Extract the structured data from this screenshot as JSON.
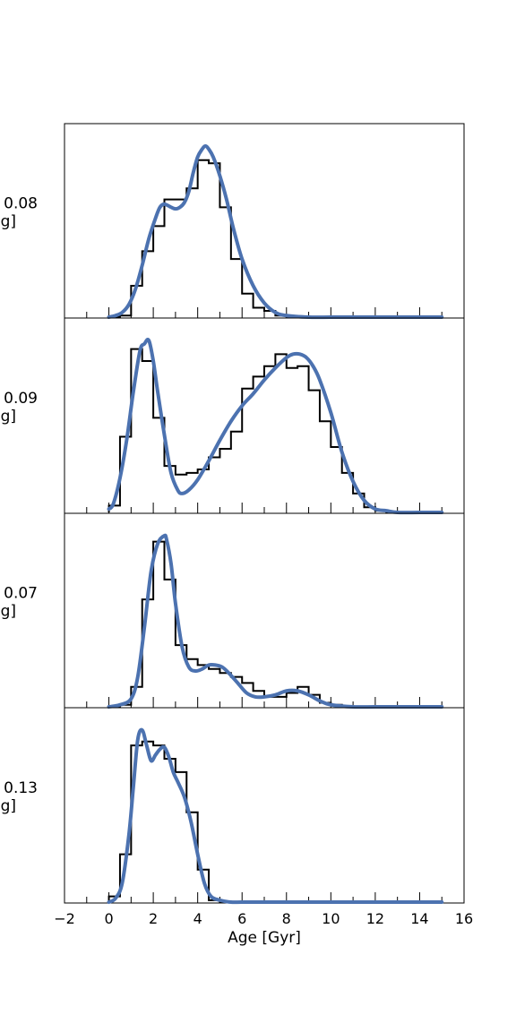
{
  "chart_data": [
    {
      "type": "histogram+line",
      "panel": 1,
      "ylabel_lines": [
        "0.08",
        "g]"
      ],
      "xlim": [
        -2,
        16
      ],
      "bin_edges": [
        0,
        0.5,
        1,
        1.5,
        2,
        2.5,
        3,
        3.5,
        4,
        4.5,
        5,
        5.5,
        6,
        6.5,
        7,
        7.5,
        8,
        8.5,
        9,
        9.5,
        10,
        10.5,
        11,
        11.5,
        12,
        12.5,
        13,
        13.5,
        14,
        14.5,
        15
      ],
      "hist_values": [
        0,
        0.01,
        0.2,
        0.42,
        0.58,
        0.75,
        0.75,
        0.82,
        1.0,
        0.98,
        0.7,
        0.37,
        0.15,
        0.06,
        0.04,
        0.01,
        0,
        0,
        0,
        0,
        0,
        0,
        0,
        0,
        0,
        0,
        0,
        0,
        0,
        0
      ],
      "line_x": [
        0,
        0.3,
        0.6,
        0.9,
        1.2,
        1.5,
        1.8,
        2.1,
        2.3,
        2.5,
        2.8,
        3.0,
        3.2,
        3.4,
        3.6,
        3.8,
        4.0,
        4.2,
        4.35,
        4.5,
        4.7,
        5.0,
        5.3,
        5.6,
        6.0,
        6.5,
        7.0,
        7.5,
        8.0,
        9.0,
        10,
        11,
        12,
        13,
        14,
        15
      ],
      "line_y": [
        0,
        0.01,
        0.03,
        0.08,
        0.18,
        0.33,
        0.5,
        0.63,
        0.7,
        0.72,
        0.7,
        0.69,
        0.7,
        0.73,
        0.8,
        0.92,
        1.02,
        1.07,
        1.09,
        1.07,
        1.02,
        0.9,
        0.75,
        0.57,
        0.37,
        0.2,
        0.09,
        0.03,
        0.01,
        0,
        0,
        0,
        0,
        0,
        0,
        0
      ]
    },
    {
      "type": "histogram+line",
      "panel": 2,
      "ylabel_lines": [
        "± 0.09",
        "g]"
      ],
      "xlim": [
        -2,
        16
      ],
      "bin_edges": [
        0,
        0.5,
        1,
        1.5,
        2,
        2.5,
        3,
        3.5,
        4,
        4.5,
        5,
        5.5,
        6,
        6.5,
        7,
        7.5,
        8,
        8.5,
        9,
        9.5,
        10,
        10.5,
        11,
        11.5,
        12,
        12.5,
        13,
        13.5,
        14,
        14.5,
        15
      ],
      "hist_values": [
        0.04,
        0.44,
        0.95,
        0.88,
        0.55,
        0.27,
        0.22,
        0.23,
        0.25,
        0.32,
        0.37,
        0.47,
        0.72,
        0.79,
        0.85,
        0.92,
        0.84,
        0.85,
        0.71,
        0.53,
        0.38,
        0.23,
        0.11,
        0.03,
        0.01,
        0,
        0,
        0,
        0,
        0
      ],
      "line_x": [
        0,
        0.2,
        0.5,
        0.8,
        1.1,
        1.4,
        1.6,
        1.8,
        2.0,
        2.2,
        2.5,
        2.8,
        3.1,
        3.3,
        3.6,
        4.0,
        4.5,
        5.0,
        5.5,
        6.0,
        6.5,
        7.0,
        7.5,
        8.0,
        8.3,
        8.6,
        8.9,
        9.2,
        9.5,
        10.0,
        10.5,
        11.0,
        11.5,
        12.0,
        12.5,
        13,
        14,
        15
      ],
      "line_y": [
        0.02,
        0.05,
        0.2,
        0.42,
        0.7,
        0.94,
        0.98,
        1.0,
        0.88,
        0.7,
        0.45,
        0.23,
        0.13,
        0.11,
        0.13,
        0.19,
        0.3,
        0.42,
        0.53,
        0.62,
        0.69,
        0.77,
        0.84,
        0.9,
        0.92,
        0.92,
        0.9,
        0.85,
        0.77,
        0.58,
        0.35,
        0.18,
        0.07,
        0.02,
        0.01,
        0,
        0,
        0
      ]
    },
    {
      "type": "histogram+line",
      "panel": 3,
      "ylabel_lines": [
        "0.07",
        "g]"
      ],
      "xlim": [
        -2,
        16
      ],
      "bin_edges": [
        0,
        0.5,
        1,
        1.5,
        2,
        2.5,
        3,
        3.5,
        4,
        4.5,
        5,
        5.5,
        6,
        6.5,
        7,
        7.5,
        8,
        8.5,
        9,
        9.5,
        10,
        10.5,
        11,
        11.5,
        12,
        12.5,
        13,
        13.5,
        14,
        14.5,
        15
      ],
      "hist_values": [
        0,
        0.01,
        0.1,
        0.54,
        0.83,
        0.64,
        0.31,
        0.24,
        0.21,
        0.19,
        0.17,
        0.15,
        0.12,
        0.08,
        0.05,
        0.05,
        0.07,
        0.1,
        0.06,
        0.02,
        0.01,
        0,
        0,
        0,
        0,
        0,
        0,
        0,
        0,
        0
      ],
      "line_x": [
        0,
        0.5,
        1.0,
        1.3,
        1.6,
        1.9,
        2.2,
        2.5,
        2.6,
        2.8,
        3.0,
        3.3,
        3.6,
        3.9,
        4.2,
        4.5,
        4.8,
        5.1,
        5.4,
        5.8,
        6.2,
        6.6,
        7.0,
        7.5,
        8.0,
        8.5,
        9.0,
        9.5,
        10,
        11,
        12,
        13,
        14,
        15
      ],
      "line_y": [
        0,
        0.01,
        0.04,
        0.15,
        0.4,
        0.68,
        0.82,
        0.86,
        0.84,
        0.72,
        0.52,
        0.3,
        0.2,
        0.18,
        0.19,
        0.21,
        0.21,
        0.2,
        0.17,
        0.12,
        0.07,
        0.05,
        0.05,
        0.06,
        0.08,
        0.08,
        0.06,
        0.03,
        0.01,
        0,
        0,
        0,
        0,
        0
      ]
    },
    {
      "type": "histogram+line",
      "panel": 4,
      "ylabel_lines": [
        "0.13",
        "g]"
      ],
      "xlim": [
        -2,
        16
      ],
      "xticks": [
        -2,
        0,
        2,
        4,
        6,
        8,
        10,
        12,
        14,
        16
      ],
      "xtick_labels": [
        "−2",
        "0",
        "2",
        "4",
        "6",
        "8",
        "10",
        "12",
        "14",
        "16"
      ],
      "xlabel": "Age [Gyr]",
      "bin_edges": [
        0,
        0.5,
        1,
        1.5,
        2,
        2.5,
        3,
        3.5,
        4,
        4.5,
        5,
        5.5,
        6,
        6.5,
        7,
        7.5,
        8,
        8.5,
        9,
        9.5,
        10,
        10.5,
        11,
        11.5,
        12,
        12.5,
        13,
        13.5,
        14,
        14.5,
        15
      ],
      "hist_values": [
        0.03,
        0.25,
        0.82,
        0.84,
        0.82,
        0.75,
        0.68,
        0.47,
        0.17,
        0.01,
        0,
        0,
        0,
        0,
        0,
        0,
        0,
        0,
        0,
        0,
        0,
        0,
        0,
        0,
        0,
        0,
        0,
        0,
        0,
        0
      ],
      "line_x": [
        0,
        0.3,
        0.6,
        0.9,
        1.1,
        1.3,
        1.5,
        1.7,
        1.9,
        2.1,
        2.3,
        2.5,
        2.7,
        2.9,
        3.1,
        3.4,
        3.7,
        4.0,
        4.3,
        4.6,
        5.0,
        5.5,
        6,
        7,
        8,
        9,
        10,
        11,
        12,
        13,
        14,
        15
      ],
      "line_y": [
        0,
        0.02,
        0.1,
        0.35,
        0.6,
        0.85,
        0.9,
        0.82,
        0.74,
        0.77,
        0.8,
        0.81,
        0.76,
        0.68,
        0.63,
        0.55,
        0.42,
        0.25,
        0.1,
        0.03,
        0.01,
        0,
        0,
        0,
        0,
        0,
        0,
        0,
        0,
        0,
        0,
        0
      ]
    }
  ],
  "colors": {
    "line": "#4c72b0",
    "hist": "#000000",
    "axes": "#000000"
  }
}
